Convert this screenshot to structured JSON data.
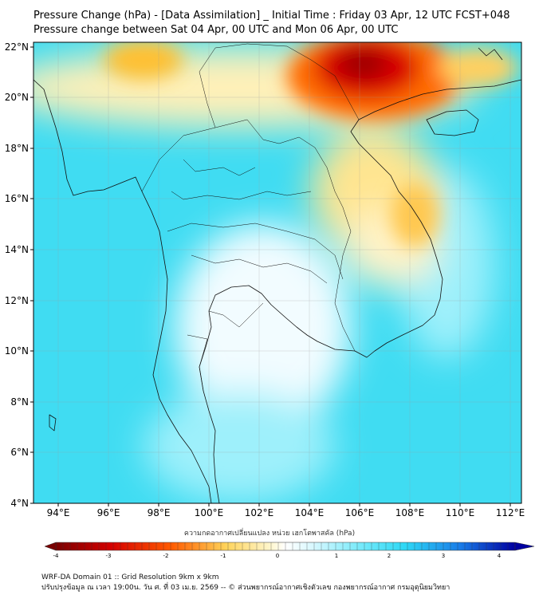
{
  "title": {
    "line1": "Pressure Change (hPa) - [Data Assimilation] _ Initial Time : Friday 03 Apr, 12 UTC FCST+048",
    "line2": "Pressure change between Sat 04 Apr, 00 UTC and Mon 06 Apr, 00 UTC"
  },
  "axes": {
    "lat_labels": [
      "22°N",
      "20°N",
      "18°N",
      "16°N",
      "14°N",
      "12°N",
      "10°N",
      "8°N",
      "6°N",
      "4°N"
    ],
    "lon_labels": [
      "94°E",
      "96°E",
      "98°E",
      "100°E",
      "102°E",
      "104°E",
      "106°E",
      "108°E",
      "110°E",
      "112°E"
    ],
    "lat_range": [
      4,
      22
    ],
    "lon_range": [
      93,
      113
    ]
  },
  "colorbar": {
    "title": "ความกดอากาศเปลี่ยนแปลง หน่วย เฮกโตพาสคัล (hPa)",
    "ticks": [
      "-4",
      "-3",
      "-2",
      "-1",
      "0",
      "1",
      "2",
      "3",
      "4"
    ],
    "range": [
      -4,
      4
    ],
    "colors": {
      "negative_max": "#7a0000",
      "negative_mid": "#ff3000",
      "negative_low": "#ffd35a",
      "zero": "#ffffff",
      "positive_low": "#bff3ff",
      "positive_mid": "#2ed8f5",
      "positive_max": "#0000a0"
    }
  },
  "footer": {
    "line1": "WRF-DA Domain 01 :: Grid Resolution 9km x 9km",
    "line2": "ปรับปรุงข้อมูล ณ เวลา 19:00น. วัน ศ. ที่ 03 เม.ย. 2569 -- © ส่วนพยากรณ์อากาศเชิงตัวเลข กองพยากรณ์อากาศ กรมอุตุนิยมวิทยา"
  },
  "icons": {
    "colorbar_left": "triangle-left-icon",
    "colorbar_right": "triangle-right-icon"
  }
}
